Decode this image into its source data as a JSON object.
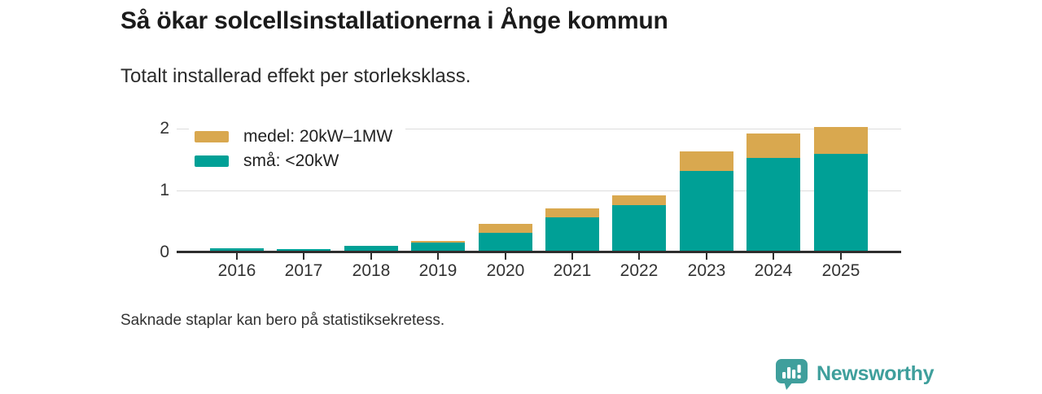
{
  "header": {
    "title": "Så ökar solcellsinstallationerna i Ånge kommun",
    "subtitle": "Totalt installerad effekt per storleksklass."
  },
  "chart_data": {
    "type": "bar",
    "stacked": true,
    "title": "Så ökar solcellsinstallationerna i Ånge kommun",
    "subtitle": "Totalt installerad effekt per storleksklass.",
    "categories": [
      "2016",
      "2017",
      "2018",
      "2019",
      "2020",
      "2021",
      "2022",
      "2023",
      "2024",
      "2025"
    ],
    "series": [
      {
        "name": "medel: 20kW–1MW",
        "color": "#d9a84f",
        "values": [
          0,
          0,
          0,
          0.03,
          0.15,
          0.15,
          0.16,
          0.32,
          0.39,
          0.43
        ]
      },
      {
        "name": "små: <20kW",
        "color": "#00a096",
        "values": [
          0.06,
          0.05,
          0.1,
          0.16,
          0.31,
          0.57,
          0.76,
          1.32,
          1.53,
          1.59
        ]
      }
    ],
    "stack_order_bottom_to_top": [
      "små: <20kW",
      "medel: 20kW–1MW"
    ],
    "xlabel": "",
    "ylabel": "",
    "ylim": [
      0,
      2.1
    ],
    "yticks": [
      "0",
      "1",
      "2"
    ],
    "grid": "horizontal",
    "legend_position": "top-left-inside"
  },
  "footer": {
    "note": "Saknade staplar kan bero på statistiksekretess.",
    "brand": "Newsworthy"
  },
  "colors": {
    "medel": "#d9a84f",
    "sma": "#00a096",
    "brand_teal": "#3f9f9c",
    "axis": "#2e2e2e",
    "grid": "#dcdcdc",
    "text_dark": "#1b1b1b",
    "text_gray": "#333333"
  }
}
